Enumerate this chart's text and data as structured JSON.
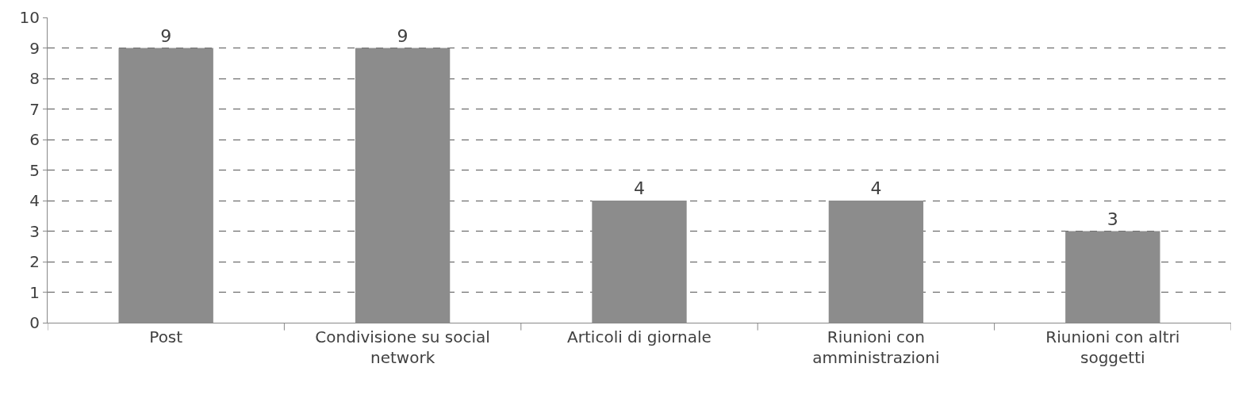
{
  "chart_data": {
    "type": "bar",
    "categories": [
      "Post",
      "Condivisione su social network",
      "Articoli di giornale",
      "Riunioni con amministrazioni",
      "Riunioni con altri soggetti"
    ],
    "values": [
      9,
      9,
      4,
      4,
      3
    ],
    "color": "#8c8c8c",
    "ylim": [
      0,
      10
    ],
    "yticks": [
      0,
      1,
      2,
      3,
      4,
      5,
      6,
      7,
      8,
      9,
      10
    ],
    "grid": "y",
    "data_labels": true
  }
}
